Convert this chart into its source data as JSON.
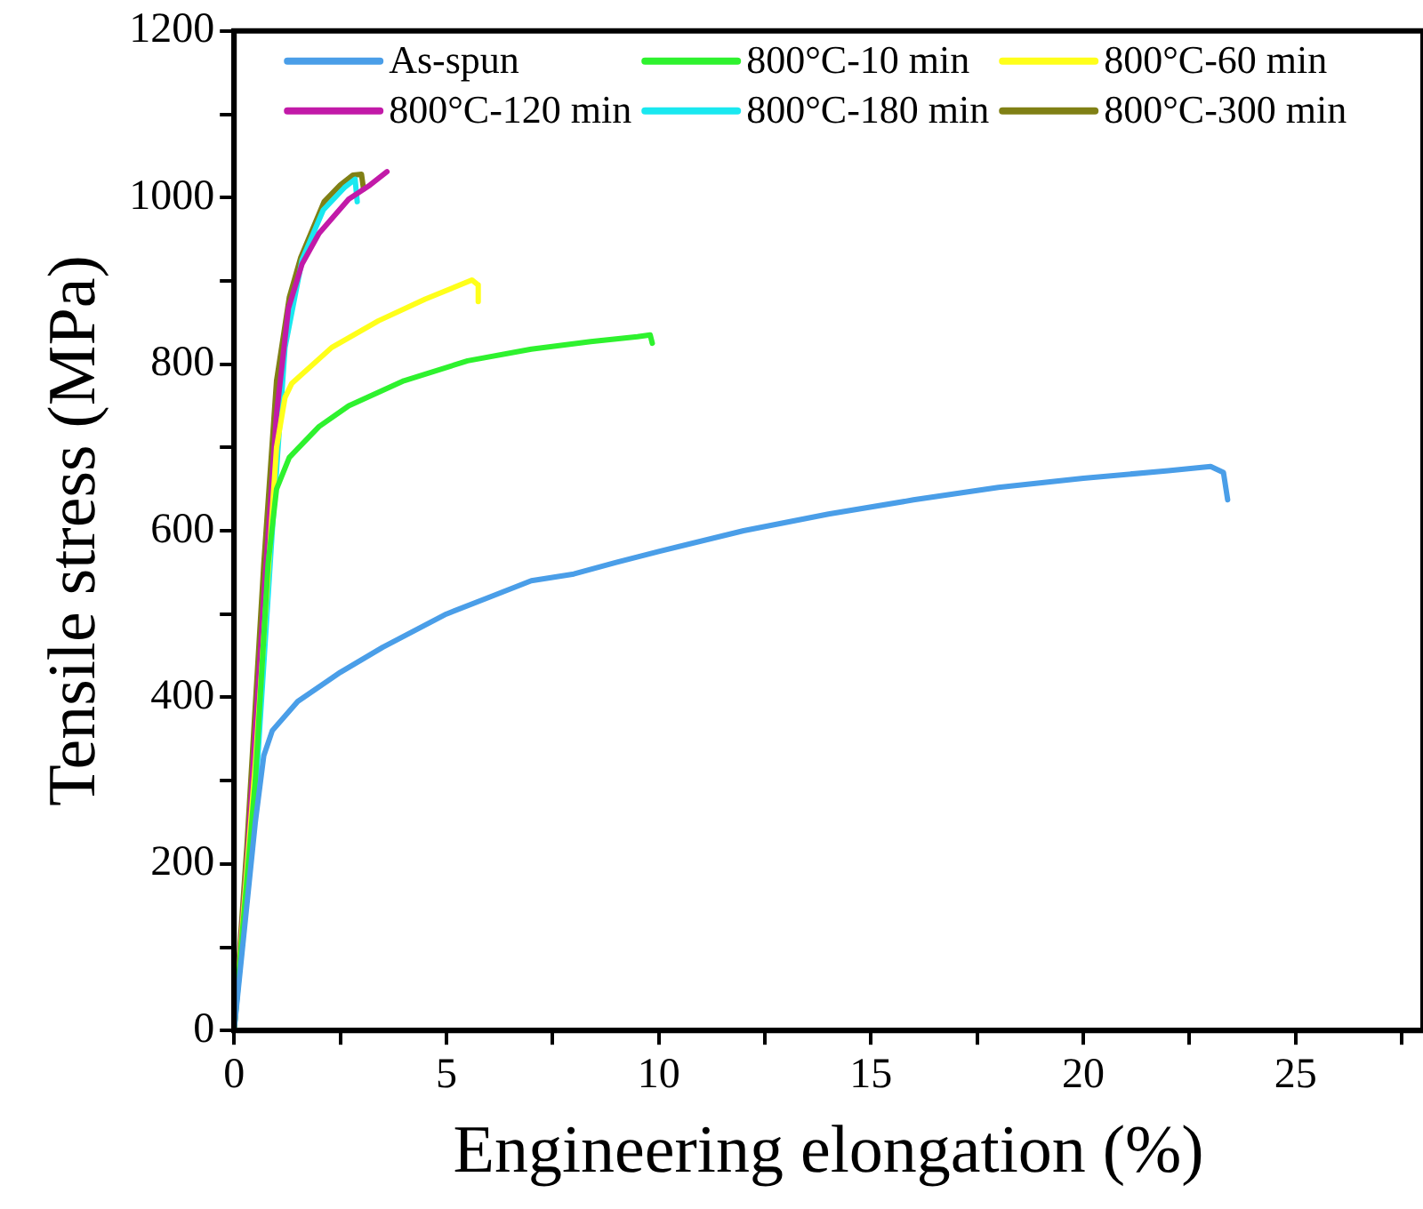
{
  "chart_data": {
    "type": "line",
    "xlabel": "Engineering elongation (%)",
    "ylabel": "Tensile stress (MPa)",
    "xlim": [
      0,
      28
    ],
    "xticks": [
      0,
      {
        "value": 2.5,
        "label": null
      },
      5,
      {
        "value": 7.5,
        "label": null
      },
      10,
      {
        "value": 12.5,
        "label": null
      },
      15,
      {
        "value": 17.5,
        "label": null
      },
      20,
      {
        "value": 22.5,
        "label": null
      },
      25,
      {
        "value": 27.5,
        "label": null
      }
    ],
    "ylim": [
      0,
      1200
    ],
    "yticks": [
      0,
      {
        "value": 100,
        "label": null
      },
      200,
      {
        "value": 300,
        "label": null
      },
      400,
      {
        "value": 500,
        "label": null
      },
      600,
      {
        "value": 700,
        "label": null
      },
      800,
      {
        "value": 900,
        "label": null
      },
      1000,
      {
        "value": 1100,
        "label": null
      },
      1200
    ],
    "grid": false,
    "legend": "top",
    "marker": "none",
    "line_style": "solid",
    "series": [
      {
        "name": "As-spun",
        "color": "#4a9ee8",
        "x": [
          0,
          0.5,
          0.7,
          0.9,
          1.5,
          2.5,
          3.5,
          5,
          6,
          7,
          8,
          9,
          10,
          12,
          14,
          16,
          18,
          20,
          22,
          23,
          23.3,
          23.4
        ],
        "values": [
          0,
          250,
          330,
          360,
          395,
          430,
          460,
          500,
          520,
          540,
          548,
          562,
          575,
          600,
          620,
          637,
          652,
          663,
          672,
          677,
          670,
          637
        ]
      },
      {
        "name": "800°C-10 min",
        "color": "#2ef22e",
        "x": [
          0,
          0.5,
          0.8,
          1.0,
          1.3,
          2,
          2.7,
          4,
          5.5,
          7,
          8.4,
          9.5,
          9.8,
          9.85
        ],
        "values": [
          0,
          300,
          560,
          650,
          688,
          725,
          750,
          780,
          804,
          818,
          827,
          833,
          835,
          825
        ]
      },
      {
        "name": "800°C-60 min",
        "color": "#ffff1a",
        "x": [
          0,
          0.5,
          1.0,
          1.2,
          1.36,
          2.3,
          3.4,
          4.5,
          5.6,
          5.75,
          5.75
        ],
        "values": [
          0,
          320,
          700,
          760,
          777,
          820,
          852,
          878,
          901,
          895,
          875
        ]
      },
      {
        "name": "800°C-120 min",
        "color": "#c21aa8",
        "x": [
          0,
          0.3,
          0.7,
          1.0,
          1.28,
          1.6,
          2.0,
          2.7,
          3.2,
          3.6
        ],
        "values": [
          0,
          200,
          520,
          740,
          867,
          920,
          957,
          998,
          1015,
          1031
        ]
      },
      {
        "name": "800°C-180 min",
        "color": "#1ae8f0",
        "x": [
          0,
          0.5,
          0.9,
          1.2,
          1.6,
          2.1,
          2.6,
          2.85,
          2.9
        ],
        "values": [
          0,
          280,
          600,
          820,
          925,
          985,
          1012,
          1022,
          995
        ]
      },
      {
        "name": "800°C-300 min",
        "color": "#808015",
        "x": [
          0,
          0.3,
          0.7,
          1.0,
          1.3,
          1.57,
          2.12,
          2.5,
          2.8,
          3.0,
          3.05
        ],
        "values": [
          0,
          220,
          560,
          780,
          880,
          928,
          995,
          1015,
          1027,
          1028,
          1010
        ]
      }
    ]
  }
}
